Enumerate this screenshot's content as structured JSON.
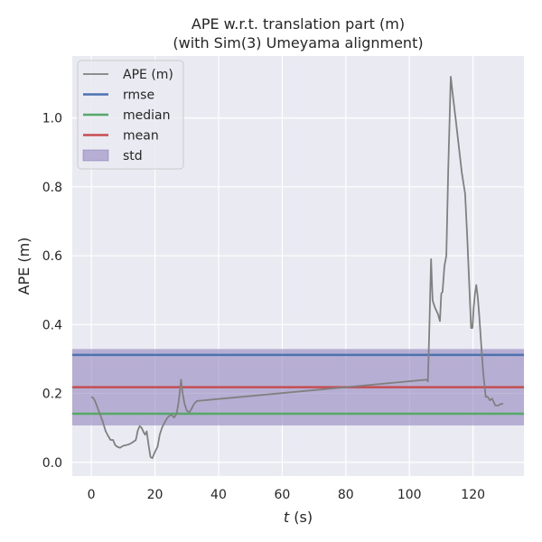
{
  "chart_data": {
    "type": "line",
    "title_lines": [
      "APE w.r.t. translation part (m)",
      "(with Sim(3) Umeyama alignment)"
    ],
    "xlabel_italic": "t",
    "xlabel_rest": " (s)",
    "ylabel": "APE (m)",
    "xlim": [
      -6,
      136
    ],
    "ylim": [
      -0.04,
      1.18
    ],
    "x_ticks": [
      0,
      20,
      40,
      60,
      80,
      100,
      120
    ],
    "x_tick_labels": [
      "0",
      "20",
      "40",
      "60",
      "80",
      "100",
      "120"
    ],
    "y_ticks": [
      0.0,
      0.2,
      0.4,
      0.6,
      0.8,
      1.0
    ],
    "y_tick_labels": [
      "0.0",
      "0.2",
      "0.4",
      "0.6",
      "0.8",
      "1.0"
    ],
    "grid": true,
    "legend_position": "top-left",
    "stats": {
      "rmse": 0.312,
      "median": 0.141,
      "mean": 0.218,
      "std": 0.111
    },
    "series": [
      {
        "name": "APE (m)",
        "color": "#808080",
        "x": [
          0,
          0.8,
          1.5,
          2.5,
          3.5,
          4.5,
          5.2,
          6,
          6.8,
          7.5,
          8.2,
          9,
          10,
          11,
          12,
          13,
          14,
          14.6,
          15.2,
          15.8,
          16.4,
          16.9,
          17.4,
          18,
          18.6,
          19.2,
          20,
          20.8,
          21.5,
          22.2,
          23,
          23.8,
          24.5,
          25.2,
          26,
          26.8,
          27.5,
          28.2,
          28.7,
          29.3,
          30,
          30.8,
          31.5,
          32.3,
          33.2,
          105.4,
          105.8,
          106.3,
          106.8,
          107.3,
          108,
          109,
          109.6,
          110,
          110.4,
          111,
          111.6,
          112.2,
          113,
          113.6,
          114.5,
          115.5,
          116.5,
          117.5,
          118.2,
          118.8,
          119.4,
          119.8,
          120.2,
          120.6,
          121,
          121.5,
          122,
          122.5,
          123.2,
          124,
          124.6,
          125.3,
          126,
          127,
          128,
          128.8,
          129.5
        ],
        "y": [
          0.19,
          0.185,
          0.17,
          0.145,
          0.12,
          0.09,
          0.078,
          0.065,
          0.065,
          0.05,
          0.045,
          0.042,
          0.048,
          0.05,
          0.053,
          0.058,
          0.065,
          0.092,
          0.105,
          0.1,
          0.088,
          0.08,
          0.09,
          0.05,
          0.015,
          0.012,
          0.03,
          0.045,
          0.08,
          0.1,
          0.115,
          0.128,
          0.135,
          0.138,
          0.13,
          0.14,
          0.18,
          0.24,
          0.2,
          0.17,
          0.15,
          0.145,
          0.155,
          0.17,
          0.178,
          0.24,
          0.235,
          0.4,
          0.59,
          0.47,
          0.45,
          0.43,
          0.41,
          0.49,
          0.495,
          0.57,
          0.6,
          0.85,
          1.12,
          1.07,
          1.0,
          0.92,
          0.84,
          0.78,
          0.65,
          0.52,
          0.39,
          0.39,
          0.45,
          0.49,
          0.515,
          0.48,
          0.42,
          0.35,
          0.26,
          0.19,
          0.19,
          0.18,
          0.185,
          0.165,
          0.165,
          0.17,
          0.17
        ]
      },
      {
        "name": "rmse",
        "color": "#4c72b0",
        "value": 0.312
      },
      {
        "name": "median",
        "color": "#55a868",
        "value": 0.141
      },
      {
        "name": "mean",
        "color": "#c44e52",
        "value": 0.218
      },
      {
        "name": "std",
        "color": "#8172b3",
        "range": [
          0.107,
          0.329
        ]
      }
    ],
    "colors": {
      "plot_background": "#eaeaf2",
      "grid": "#ffffff",
      "text": "#262626",
      "std_fill": "#8172b3",
      "legend_background": "#eaeaf2",
      "legend_border": "#cccccc"
    }
  }
}
